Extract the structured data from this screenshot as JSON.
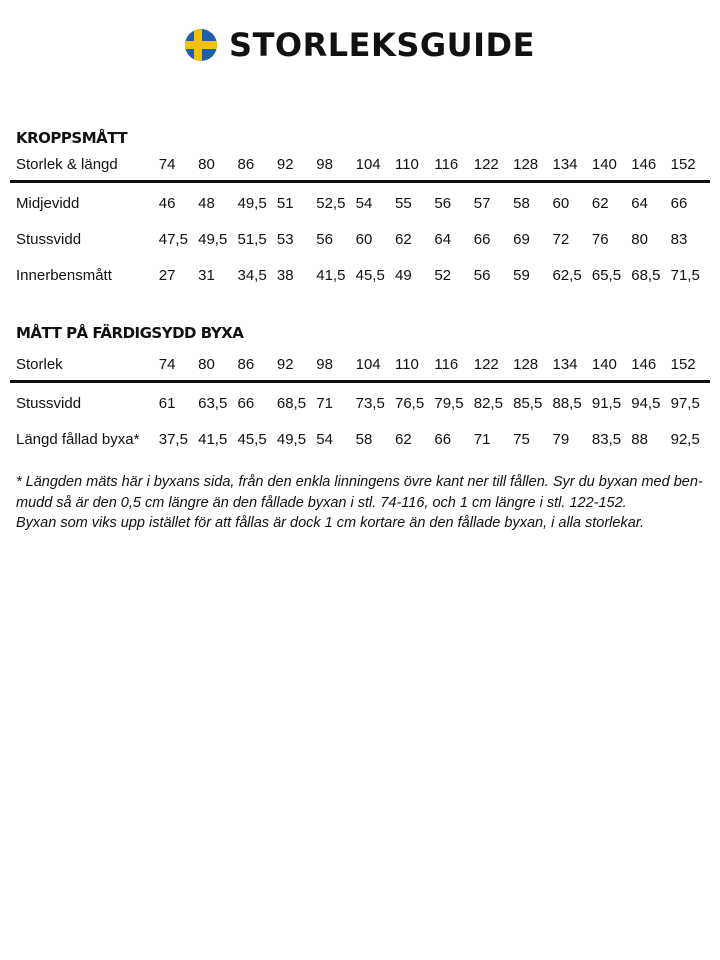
{
  "header": {
    "title": "STORLEKSGUIDE",
    "flag_icon": "sweden-flag-icon",
    "flag_colors": {
      "blue": "#1f5fa8",
      "yellow": "#f2c200"
    }
  },
  "body_measurements": {
    "title": "KROPPSMÅTT",
    "header_label": "Storlek & längd",
    "sizes": [
      "74",
      "80",
      "86",
      "92",
      "98",
      "104",
      "110",
      "116",
      "122",
      "128",
      "134",
      "140",
      "146",
      "152"
    ],
    "rows": [
      {
        "label": "Midjevidd",
        "values": [
          "46",
          "48",
          "49,5",
          "51",
          "52,5",
          "54",
          "55",
          "56",
          "57",
          "58",
          "60",
          "62",
          "64",
          "66"
        ]
      },
      {
        "label": "Stussvidd",
        "values": [
          "47,5",
          "49,5",
          "51,5",
          "53",
          "56",
          "60",
          "62",
          "64",
          "66",
          "69",
          "72",
          "76",
          "80",
          "83"
        ]
      },
      {
        "label": "Innerbensmått",
        "values": [
          "27",
          "31",
          "34,5",
          "38",
          "41,5",
          "45,5",
          "49",
          "52",
          "56",
          "59",
          "62,5",
          "65,5",
          "68,5",
          "71,5"
        ]
      }
    ]
  },
  "garment_measurements": {
    "title": "MÅTT PÅ FÄRDIGSYDD BYXA",
    "header_label": "Storlek",
    "sizes": [
      "74",
      "80",
      "86",
      "92",
      "98",
      "104",
      "110",
      "116",
      "122",
      "128",
      "134",
      "140",
      "146",
      "152"
    ],
    "rows": [
      {
        "label": "Stussvidd",
        "values": [
          "61",
          "63,5",
          "66",
          "68,5",
          "71",
          "73,5",
          "76,5",
          "79,5",
          "82,5",
          "85,5",
          "88,5",
          "91,5",
          "94,5",
          "97,5"
        ]
      },
      {
        "label": "Längd fållad byxa*",
        "values": [
          "37,5",
          "41,5",
          "45,5",
          "49,5",
          "54",
          "58",
          "62",
          "66",
          "71",
          "75",
          "79",
          "83,5",
          "88",
          "92,5"
        ]
      }
    ]
  },
  "footnote": [
    "* Längden mäts här i byxans sida, från den enkla linningens övre kant ner till fållen. Syr du byxan med ben-",
    "mudd så är den 0,5 cm längre än den fållade byxan i stl. 74-116, och 1 cm längre i stl. 122-152.",
    "Byxan som viks upp istället för att fållas är dock 1 cm kortare än den fållade byxan, i alla storlekar."
  ]
}
